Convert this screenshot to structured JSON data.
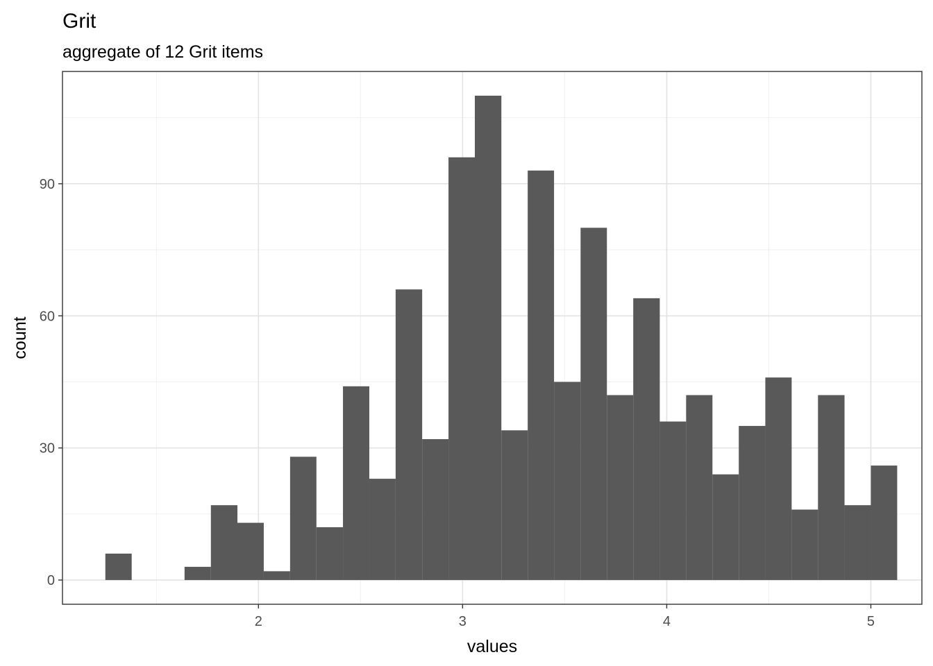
{
  "chart_data": {
    "type": "bar",
    "title": "Grit",
    "subtitle": "aggregate of 12 Grit items",
    "xlabel": "values",
    "ylabel": "count",
    "xlim": [
      1.04,
      5.25
    ],
    "ylim": [
      -5.5,
      115.5
    ],
    "x_ticks": [
      2,
      3,
      4,
      5
    ],
    "y_ticks": [
      0,
      30,
      60,
      90
    ],
    "grid": true,
    "bar_color": "#595959",
    "bin_width": 0.1293,
    "bins": [
      {
        "x0": 1.25,
        "x1": 1.379,
        "count": 6
      },
      {
        "x0": 1.379,
        "x1": 1.509,
        "count": 0
      },
      {
        "x0": 1.509,
        "x1": 1.638,
        "count": 0
      },
      {
        "x0": 1.638,
        "x1": 1.767,
        "count": 3
      },
      {
        "x0": 1.767,
        "x1": 1.897,
        "count": 17
      },
      {
        "x0": 1.897,
        "x1": 2.026,
        "count": 13
      },
      {
        "x0": 2.026,
        "x1": 2.155,
        "count": 2
      },
      {
        "x0": 2.155,
        "x1": 2.284,
        "count": 28
      },
      {
        "x0": 2.284,
        "x1": 2.414,
        "count": 12
      },
      {
        "x0": 2.414,
        "x1": 2.543,
        "count": 44
      },
      {
        "x0": 2.543,
        "x1": 2.672,
        "count": 23
      },
      {
        "x0": 2.672,
        "x1": 2.802,
        "count": 66
      },
      {
        "x0": 2.802,
        "x1": 2.931,
        "count": 32
      },
      {
        "x0": 2.931,
        "x1": 3.06,
        "count": 96
      },
      {
        "x0": 3.06,
        "x1": 3.19,
        "count": 110
      },
      {
        "x0": 3.19,
        "x1": 3.319,
        "count": 34
      },
      {
        "x0": 3.319,
        "x1": 3.448,
        "count": 93
      },
      {
        "x0": 3.448,
        "x1": 3.578,
        "count": 45
      },
      {
        "x0": 3.578,
        "x1": 3.707,
        "count": 80
      },
      {
        "x0": 3.707,
        "x1": 3.836,
        "count": 42
      },
      {
        "x0": 3.836,
        "x1": 3.966,
        "count": 64
      },
      {
        "x0": 3.966,
        "x1": 4.095,
        "count": 36
      },
      {
        "x0": 4.095,
        "x1": 4.224,
        "count": 42
      },
      {
        "x0": 4.224,
        "x1": 4.353,
        "count": 24
      },
      {
        "x0": 4.353,
        "x1": 4.483,
        "count": 35
      },
      {
        "x0": 4.483,
        "x1": 4.612,
        "count": 46
      },
      {
        "x0": 4.612,
        "x1": 4.741,
        "count": 16
      },
      {
        "x0": 4.741,
        "x1": 4.871,
        "count": 42
      },
      {
        "x0": 4.871,
        "x1": 5.0,
        "count": 17
      },
      {
        "x0": 5.0,
        "x1": 5.129,
        "count": 26
      }
    ]
  }
}
